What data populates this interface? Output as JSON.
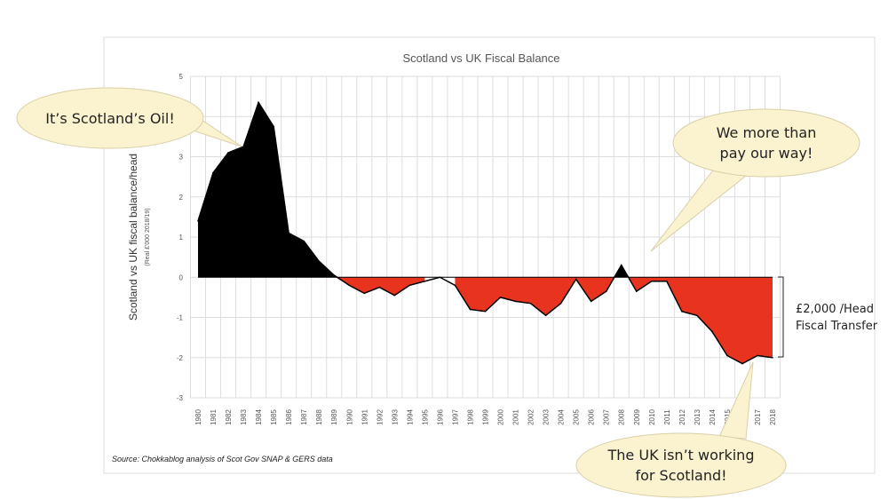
{
  "chart_data": {
    "type": "area",
    "title": "Scotland vs UK Fiscal Balance",
    "ylabel": "Scotland vs UK fiscal balance/head",
    "ylabel_sub": "(Real £'000 2018/19)",
    "ylim": [
      -3,
      5
    ],
    "yticks": [
      "-3",
      "-2",
      "-1",
      "0",
      "1",
      "2",
      "3",
      "4",
      "5"
    ],
    "grid": true,
    "categories": [
      "1980",
      "1981",
      "1982",
      "1983",
      "1984",
      "1985",
      "1986",
      "1987",
      "1988",
      "1989",
      "1990",
      "1991",
      "1992",
      "1993",
      "1994",
      "1995",
      "1996",
      "1997",
      "1998",
      "1999",
      "2000",
      "2001",
      "2002",
      "2003",
      "2004",
      "2005",
      "2006",
      "2007",
      "2008",
      "2009",
      "2010",
      "2011",
      "2012",
      "2013",
      "2014",
      "2015",
      "2016",
      "2017",
      "2018"
    ],
    "values": [
      1.4,
      2.6,
      3.1,
      3.25,
      4.35,
      3.75,
      1.1,
      0.9,
      0.4,
      0.05,
      -0.2,
      -0.4,
      -0.25,
      -0.45,
      -0.2,
      -0.1,
      0.0,
      -0.2,
      -0.8,
      -0.85,
      -0.5,
      -0.6,
      -0.65,
      -0.95,
      -0.65,
      -0.05,
      -0.6,
      -0.35,
      0.3,
      -0.35,
      -0.1,
      -0.1,
      -0.85,
      -0.95,
      -1.35,
      -1.95,
      -2.15,
      -1.95,
      -2.0
    ],
    "colors": {
      "positive": "#000000",
      "negative": "#e8341f"
    }
  },
  "callouts": {
    "oil": "It’s Scotland’s Oil!",
    "pay_line1": "We more than",
    "pay_line2": "pay our way!",
    "uk_line1": "The UK isn’t working",
    "uk_line2": "for Scotland!"
  },
  "transfer": {
    "line1": "£2,000 /Head",
    "line2": "Fiscal Transfer"
  },
  "source": "Source: Chokkablog analysis of Scot Gov SNAP & GERS data"
}
